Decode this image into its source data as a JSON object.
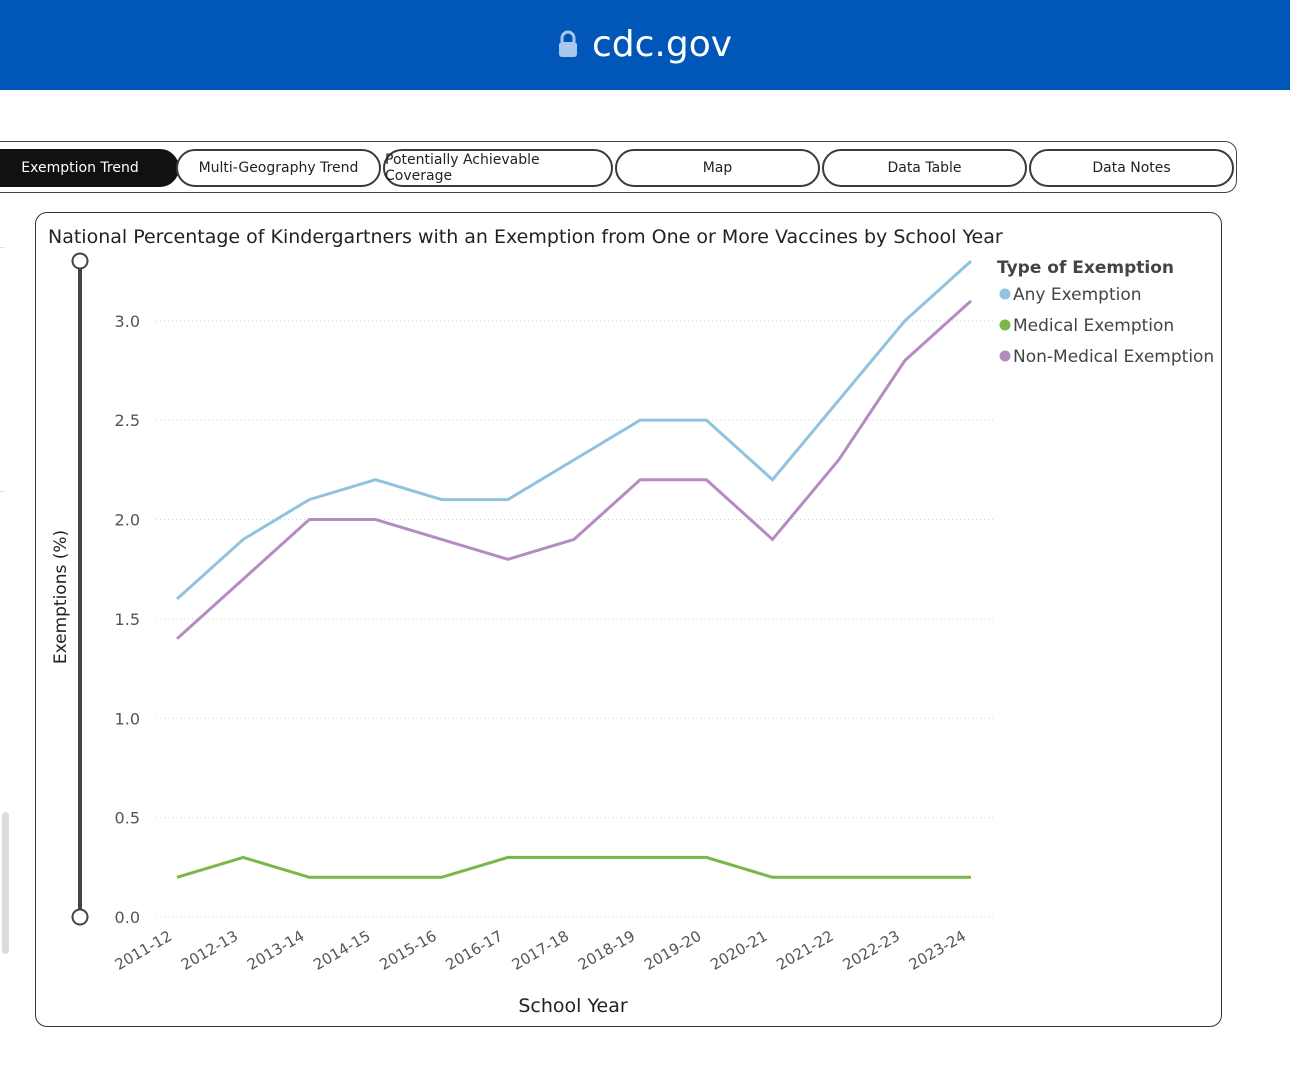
{
  "browser": {
    "url": "cdc.gov"
  },
  "tabs": [
    {
      "label": "Exemption Trend",
      "active": true
    },
    {
      "label": "Multi-Geography Trend",
      "active": false
    },
    {
      "label": "Potentially Achievable Coverage",
      "active": false
    },
    {
      "label": "Map",
      "active": false
    },
    {
      "label": "Data Table",
      "active": false
    },
    {
      "label": "Data Notes",
      "active": false
    }
  ],
  "chart_data": {
    "type": "line",
    "title": "National Percentage of Kindergartners with an Exemption from One or More Vaccines by School Year",
    "xlabel": "School Year",
    "ylabel": "Exemptions (%)",
    "categories": [
      "2011-12",
      "2012-13",
      "2013-14",
      "2014-15",
      "2015-16",
      "2016-17",
      "2017-18",
      "2018-19",
      "2019-20",
      "2020-21",
      "2021-22",
      "2022-23",
      "2023-24"
    ],
    "yticks": [
      "0.0",
      "0.5",
      "1.0",
      "1.5",
      "2.0",
      "2.5",
      "3.0"
    ],
    "ylim": [
      0,
      3.3
    ],
    "grid": true,
    "legend_title": "Type of Exemption",
    "legend_position": "right",
    "series": [
      {
        "name": "Any Exemption",
        "color": "#8fc3e0",
        "values": [
          1.6,
          1.9,
          2.1,
          2.2,
          2.1,
          2.1,
          2.3,
          2.5,
          2.5,
          2.2,
          2.6,
          3.0,
          3.3
        ]
      },
      {
        "name": "Medical Exemption",
        "color": "#7ab648",
        "values": [
          0.2,
          0.3,
          0.2,
          0.2,
          0.2,
          0.3,
          0.3,
          0.3,
          0.3,
          0.2,
          0.2,
          0.2,
          0.2
        ]
      },
      {
        "name": "Non-Medical Exemption",
        "color": "#b48cc0",
        "values": [
          1.4,
          1.7,
          2.0,
          2.0,
          1.9,
          1.8,
          1.9,
          2.2,
          2.2,
          1.9,
          2.3,
          2.8,
          3.1
        ]
      }
    ]
  }
}
